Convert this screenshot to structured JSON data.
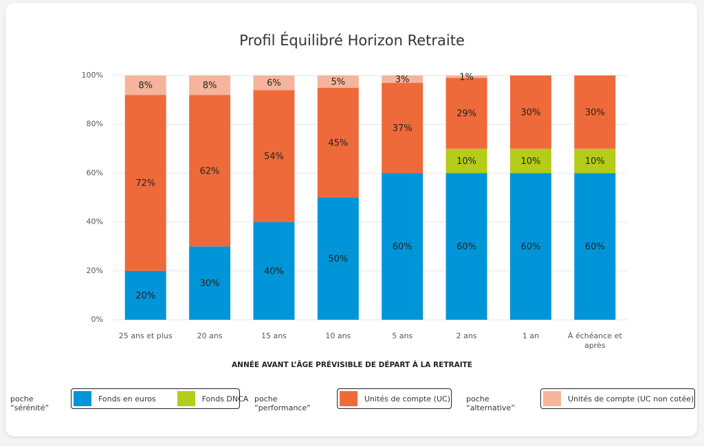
{
  "chart_data": {
    "type": "stacked_bar",
    "title": "Profil Équilibré Horizon Retraite",
    "x_label": "ANNÉE AVANT L’ÂGE PRÉVISIBLE DE DÉPART À LA RETRAITE",
    "categories": [
      "25 ans et plus",
      "20 ans",
      "15 ans",
      "10 ans",
      "5 ans",
      "2 ans",
      "1 an",
      "À échéance et après"
    ],
    "ylim": [
      0,
      100
    ],
    "yticks": [
      {
        "value": 0,
        "label": "0%"
      },
      {
        "value": 20,
        "label": "20%"
      },
      {
        "value": 40,
        "label": "40%"
      },
      {
        "value": 60,
        "label": "60%"
      },
      {
        "value": 80,
        "label": "80%"
      },
      {
        "value": 100,
        "label": "100%"
      }
    ],
    "grid": true,
    "groups": [
      {
        "name": "poche “sérénité”",
        "series": [
          {
            "name": "Fonds en euros",
            "color": "#0095d9",
            "values": [
              20,
              30,
              40,
              50,
              60,
              60,
              60,
              60
            ],
            "value_labels": [
              "20%",
              "30%",
              "40%",
              "50%",
              "60%",
              "60%",
              "60%",
              "60%"
            ]
          },
          {
            "name": "Fonds DNCA",
            "color": "#b5cc18",
            "values": [
              null,
              null,
              null,
              null,
              null,
              10,
              10,
              10
            ],
            "value_labels": [
              null,
              null,
              null,
              null,
              null,
              "10%",
              "10%",
              "10%"
            ]
          }
        ]
      },
      {
        "name": "poche “performance”",
        "series": [
          {
            "name": "Unités de compte (UC)",
            "color": "#ee6a3a",
            "values": [
              72,
              62,
              54,
              45,
              37,
              29,
              30,
              30
            ],
            "value_labels": [
              "72%",
              "62%",
              "54%",
              "45%",
              "37%",
              "29%",
              "30%",
              "30%"
            ]
          }
        ]
      },
      {
        "name": "poche “alternative”",
        "series": [
          {
            "name": "Unités de compte  (UC non  cotée)",
            "color": "#f5b49b",
            "values": [
              8,
              8,
              6,
              5,
              3,
              1,
              null,
              null
            ],
            "value_labels": [
              "8%",
              "8%",
              "6%",
              "5%",
              "3%",
              "1%",
              null,
              null
            ]
          }
        ]
      }
    ]
  }
}
